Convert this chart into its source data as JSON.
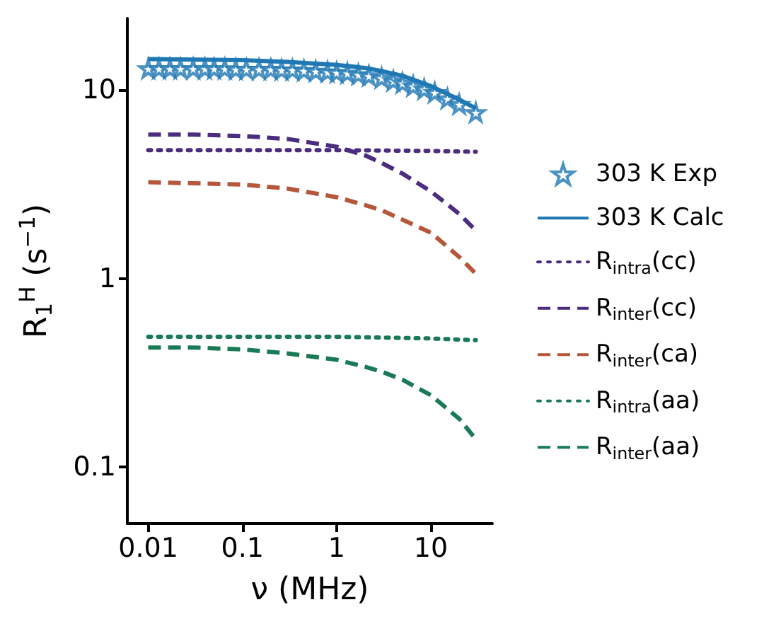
{
  "chart_data": {
    "type": "line",
    "xlabel": "ν (MHz)",
    "ylabel": "R$_{1}$$^{H}$ (s$^{−1}$)",
    "log": "xy",
    "grid": false,
    "legend": "right",
    "marker": "none",
    "xlim": [
      0.006,
      45
    ],
    "ylim": [
      0.05,
      24
    ],
    "xticks": [
      0.01,
      0.1,
      1,
      10
    ],
    "yticks": [
      0.1,
      1,
      10
    ],
    "series": [
      {
        "name": "303 K Exp",
        "type": "scatter",
        "marker": "star",
        "color": "#1f78b4",
        "x": [
          0.01,
          0.013,
          0.017,
          0.022,
          0.03,
          0.04,
          0.05,
          0.065,
          0.085,
          0.11,
          0.15,
          0.2,
          0.26,
          0.34,
          0.45,
          0.6,
          0.8,
          1,
          1.3,
          1.7,
          2.2,
          3,
          4,
          5,
          6.5,
          8.5,
          11,
          15,
          20,
          30
        ],
        "values": [
          13.0,
          13.0,
          13.0,
          13.0,
          13.0,
          13.0,
          13.0,
          13.0,
          12.9,
          12.9,
          12.9,
          12.9,
          12.8,
          12.8,
          12.7,
          12.6,
          12.5,
          12.4,
          12.3,
          12.1,
          11.9,
          11.6,
          11.2,
          10.9,
          10.5,
          10.1,
          9.7,
          9.0,
          8.4,
          7.6
        ]
      },
      {
        "name": "303 K Calc",
        "line_style": "solid",
        "color": "#1f78b4",
        "x": [
          0.01,
          0.03,
          0.1,
          0.3,
          1,
          2,
          3,
          5,
          10,
          20,
          30
        ],
        "values": [
          14.6,
          14.5,
          14.4,
          14.1,
          13.6,
          13.1,
          12.6,
          11.9,
          10.5,
          8.9,
          8.0
        ]
      },
      {
        "name": "R$_{intra}$(cc)",
        "line_style": "dotted",
        "color": "#4b2c7f",
        "x": [
          0.01,
          0.1,
          1,
          10,
          30
        ],
        "values": [
          4.8,
          4.8,
          4.8,
          4.75,
          4.7
        ]
      },
      {
        "name": "R$_{inter}$(cc)",
        "line_style": "dashed",
        "color": "#4b2c7f",
        "x": [
          0.01,
          0.03,
          0.1,
          0.3,
          1,
          2,
          3,
          5,
          10,
          20,
          30
        ],
        "values": [
          5.8,
          5.8,
          5.7,
          5.5,
          5.0,
          4.5,
          4.1,
          3.6,
          2.9,
          2.2,
          1.8
        ]
      },
      {
        "name": "R$_{inter}$(ca)",
        "line_style": "dashed",
        "color": "#b5573a",
        "x": [
          0.01,
          0.03,
          0.1,
          0.3,
          1,
          2,
          3,
          5,
          10,
          20,
          30
        ],
        "values": [
          3.24,
          3.2,
          3.15,
          3.0,
          2.7,
          2.45,
          2.3,
          2.05,
          1.75,
          1.3,
          1.06
        ]
      },
      {
        "name": "R$_{intra}$(aa)",
        "line_style": "dotted",
        "color": "#1a7a55",
        "x": [
          0.01,
          0.1,
          1,
          10,
          30
        ],
        "values": [
          0.49,
          0.49,
          0.49,
          0.48,
          0.47
        ]
      },
      {
        "name": "R$_{inter}$(aa)",
        "line_style": "dashed",
        "color": "#1a7a55",
        "x": [
          0.01,
          0.03,
          0.1,
          0.3,
          1,
          2,
          3,
          5,
          10,
          20,
          30
        ],
        "values": [
          0.43,
          0.43,
          0.42,
          0.4,
          0.37,
          0.34,
          0.32,
          0.29,
          0.24,
          0.18,
          0.14
        ]
      }
    ]
  }
}
